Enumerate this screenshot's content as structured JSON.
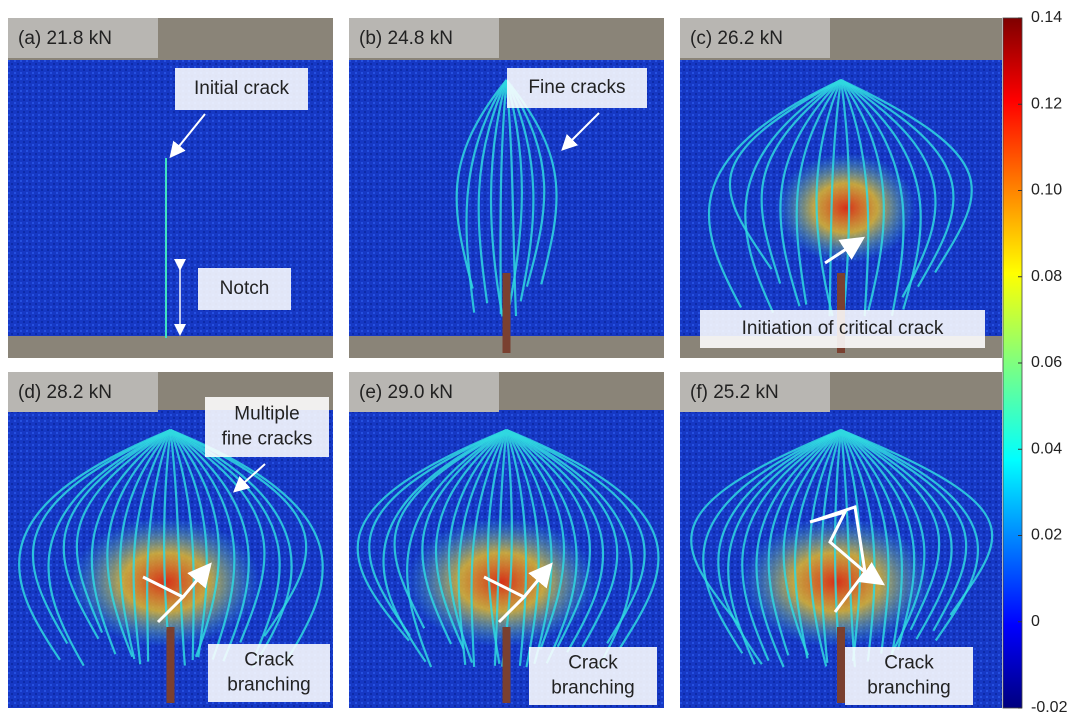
{
  "panels": [
    {
      "label": "(a) 21.8 kN",
      "annotations": [
        [
          "Initial crack"
        ],
        [
          "Notch"
        ]
      ]
    },
    {
      "label": "(b) 24.8 kN",
      "annotations": [
        [
          "Fine cracks"
        ]
      ]
    },
    {
      "label": "(c) 26.2 kN",
      "annotations": [
        [
          "Initiation of critical crack"
        ]
      ]
    },
    {
      "label": "(d) 28.2 kN",
      "annotations": [
        [
          "Multiple",
          "fine cracks"
        ],
        [
          "Crack",
          "branching"
        ]
      ]
    },
    {
      "label": "(e) 29.0 kN",
      "annotations": [
        [
          "Crack",
          "branching"
        ]
      ]
    },
    {
      "label": "(f) 25.2 kN",
      "annotations": [
        [
          "Crack",
          "branching"
        ]
      ]
    }
  ],
  "colorbar": {
    "lim": [
      -0.02,
      0.14
    ],
    "ticks": [
      0.14,
      0.12,
      {
        "value": 0.1,
        "label": "0.10"
      },
      0.08,
      0.06,
      0.04,
      0.02,
      0,
      -0.02
    ]
  }
}
